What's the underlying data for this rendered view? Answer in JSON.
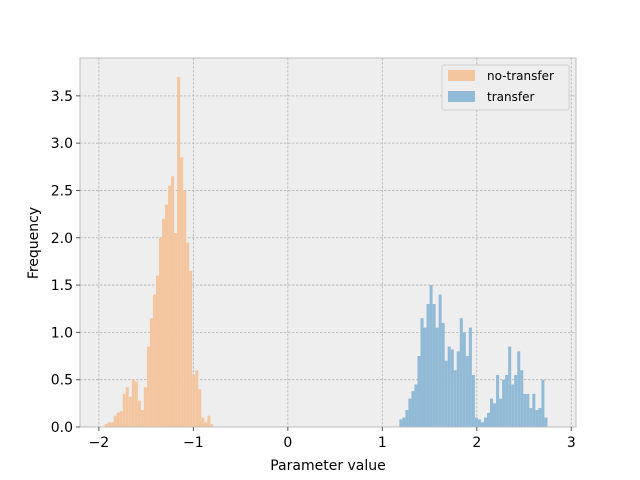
{
  "chart_data": {
    "type": "bar",
    "title": "",
    "xlabel": "Parameter value",
    "ylabel": "Frequency",
    "xlim": [
      -2.2,
      3.05
    ],
    "ylim": [
      0,
      3.9
    ],
    "xticks": [
      -2,
      -1,
      0,
      1,
      2,
      3
    ],
    "xtick_labels": [
      "−2",
      "−1",
      "0",
      "1",
      "2",
      "3"
    ],
    "yticks": [
      0.0,
      0.5,
      1.0,
      1.5,
      2.0,
      2.5,
      3.0,
      3.5
    ],
    "ytick_labels": [
      "0.0",
      "0.5",
      "1.0",
      "1.5",
      "2.0",
      "2.5",
      "3.0",
      "3.5"
    ],
    "grid": true,
    "legend_position": "top-right",
    "bin_width": 0.032,
    "series": [
      {
        "name": "no-transfer",
        "color": "#f3c6a0",
        "bin_start": -1.94,
        "values": [
          0.03,
          0.05,
          0.05,
          0.12,
          0.15,
          0.17,
          0.35,
          0.42,
          0.32,
          0.5,
          0.48,
          0.28,
          0.18,
          0.42,
          0.85,
          1.15,
          1.4,
          1.6,
          2.0,
          2.2,
          2.35,
          2.55,
          2.65,
          2.05,
          3.7,
          2.85,
          2.5,
          1.95,
          1.65,
          0.55,
          0.6,
          0.4,
          0.1,
          0.05,
          0.12,
          0.03
        ]
      },
      {
        "name": "transfer",
        "color": "#91bad6",
        "bin_start": 1.18,
        "values": [
          0.08,
          0.1,
          0.18,
          0.3,
          0.38,
          0.45,
          0.75,
          1.15,
          1.05,
          1.3,
          1.5,
          1.3,
          1.05,
          1.4,
          1.1,
          0.7,
          0.85,
          0.82,
          0.6,
          0.8,
          1.15,
          1.0,
          0.75,
          1.05,
          0.55,
          0.1,
          0.08,
          0.05,
          0.1,
          0.15,
          0.3,
          0.25,
          0.55,
          0.3,
          0.5,
          0.55,
          0.85,
          0.45,
          0.55,
          0.8,
          0.6,
          0.35,
          0.35,
          0.2,
          0.35,
          0.18,
          0.2,
          0.5,
          0.1
        ]
      }
    ]
  }
}
